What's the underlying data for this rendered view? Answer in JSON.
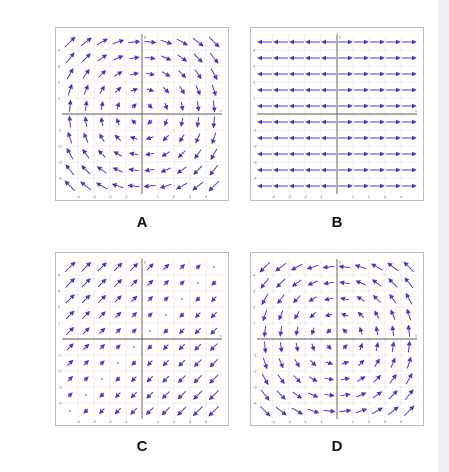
{
  "panels": [
    {
      "id": "A",
      "label": "A",
      "field": "vortex-cw",
      "axis_min": -5,
      "axis_max": 5,
      "x_ticks": [
        "-4",
        "-3",
        "-2",
        "-1",
        "1",
        "2",
        "3",
        "4"
      ],
      "y_ticks": [
        "4",
        "3",
        "2",
        "1",
        "-1",
        "-2",
        "-3",
        "-4"
      ],
      "axis_label_x": "x",
      "axis_label_y": "y"
    },
    {
      "id": "B",
      "label": "B",
      "field": "horizontal-outward",
      "axis_min": -5,
      "axis_max": 5,
      "x_ticks": [
        "-4",
        "-3",
        "-2",
        "-1",
        "1",
        "2",
        "3",
        "4"
      ],
      "y_ticks": [
        "4",
        "3",
        "2",
        "1",
        "-1",
        "-2",
        "-3",
        "-4"
      ],
      "axis_label_x": "x",
      "axis_label_y": "y"
    },
    {
      "id": "C",
      "label": "C",
      "field": "diagonal-shear",
      "axis_min": -5,
      "axis_max": 5,
      "x_ticks": [
        "-4",
        "-3",
        "-2",
        "-1",
        "1",
        "2",
        "3",
        "4"
      ],
      "y_ticks": [
        "4",
        "3",
        "2",
        "1",
        "-1",
        "-2",
        "-3",
        "-4"
      ],
      "axis_label_x": "x",
      "axis_label_y": "y"
    },
    {
      "id": "D",
      "label": "D",
      "field": "vortex-ccw",
      "axis_min": -5,
      "axis_max": 5,
      "x_ticks": [
        "-4",
        "-3",
        "-2",
        "-1",
        "1",
        "2",
        "3",
        "4"
      ],
      "y_ticks": [
        "4",
        "3",
        "2",
        "1",
        "-1",
        "-2",
        "-3",
        "-4"
      ],
      "axis_label_x": "x",
      "axis_label_y": "y"
    }
  ],
  "colors": {
    "arrow": "#3b3fc8",
    "grid": "#dcdfe6",
    "axis": "#555555",
    "tick_text": "#666666"
  }
}
